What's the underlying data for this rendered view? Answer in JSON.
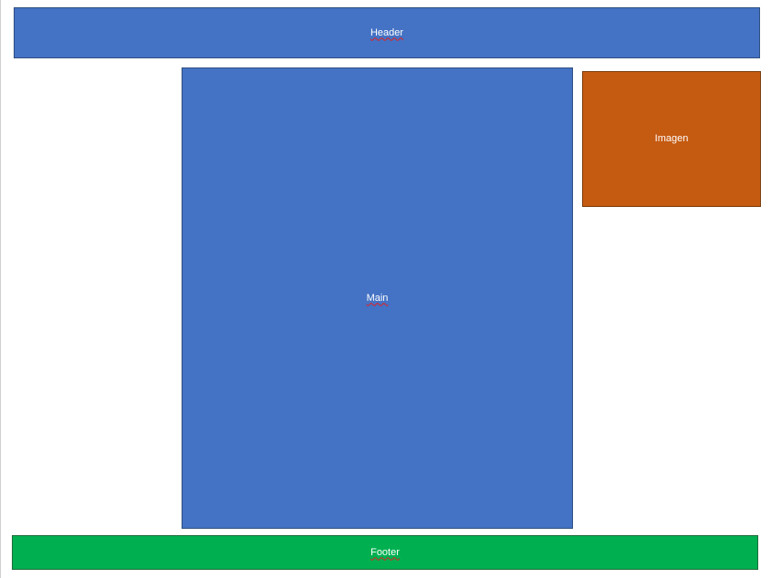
{
  "diagram": {
    "blocks": [
      {
        "id": "header",
        "label": "Header",
        "color": "#4472C4",
        "spellcheck_underline": true
      },
      {
        "id": "main",
        "label": "Main",
        "color": "#4472C4",
        "spellcheck_underline": true
      },
      {
        "id": "image",
        "label": "Imagen",
        "color": "#C55A11",
        "spellcheck_underline": false
      },
      {
        "id": "footer",
        "label": "Footer",
        "color": "#00B050",
        "spellcheck_underline": true
      }
    ]
  }
}
